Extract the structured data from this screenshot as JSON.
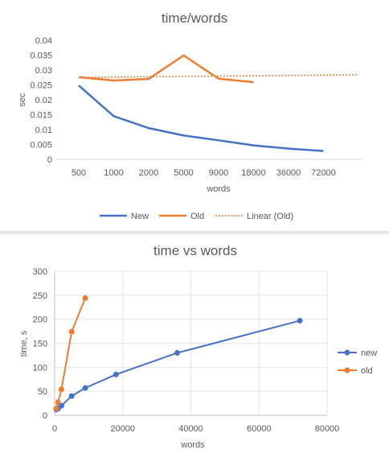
{
  "chart_data": [
    {
      "type": "line",
      "title": "time/words",
      "xlabel": "words",
      "ylabel": "sec",
      "categories": [
        "500",
        "1000",
        "2000",
        "5000",
        "9000",
        "18000",
        "36000",
        "72000"
      ],
      "ylim": [
        0,
        0.04
      ],
      "yticks": [
        "0",
        "0.005",
        "0.01",
        "0.015",
        "0.02",
        "0.025",
        "0.03",
        "0.035",
        "0.04"
      ],
      "grid": false,
      "legend": "bottom",
      "series": [
        {
          "name": "New",
          "color": "#4472C4",
          "values": [
            0.0248,
            0.0145,
            0.0105,
            0.008,
            0.0064,
            0.0047,
            0.0036,
            0.0028
          ]
        },
        {
          "name": "Old",
          "color": "#ED7D31",
          "values": [
            0.0276,
            0.0265,
            0.027,
            0.0349,
            0.0271,
            0.0259,
            null,
            null
          ]
        }
      ],
      "trendline": {
        "name": "Linear (Old)",
        "color": "#ED7D31",
        "style": "dotted",
        "start": 0.0275,
        "end": 0.0284
      }
    },
    {
      "type": "scatter",
      "title": "time vs words",
      "xlabel": "words",
      "ylabel": "time, s",
      "xlim": [
        0,
        80000
      ],
      "ylim": [
        0,
        300
      ],
      "xticks": [
        "0",
        "20000",
        "40000",
        "60000",
        "80000"
      ],
      "yticks": [
        "0",
        "50",
        "100",
        "150",
        "200",
        "250",
        "300"
      ],
      "grid": true,
      "legend": "right",
      "series": [
        {
          "name": "new",
          "color": "#4472C4",
          "x": [
            500,
            1000,
            2000,
            5000,
            9000,
            18000,
            36000,
            72000
          ],
          "y": [
            12,
            14,
            20,
            40,
            57,
            85,
            130,
            197
          ]
        },
        {
          "name": "old",
          "color": "#ED7D31",
          "x": [
            500,
            1000,
            2000,
            5000,
            9000
          ],
          "y": [
            14,
            27,
            54,
            174,
            244
          ]
        }
      ]
    }
  ]
}
